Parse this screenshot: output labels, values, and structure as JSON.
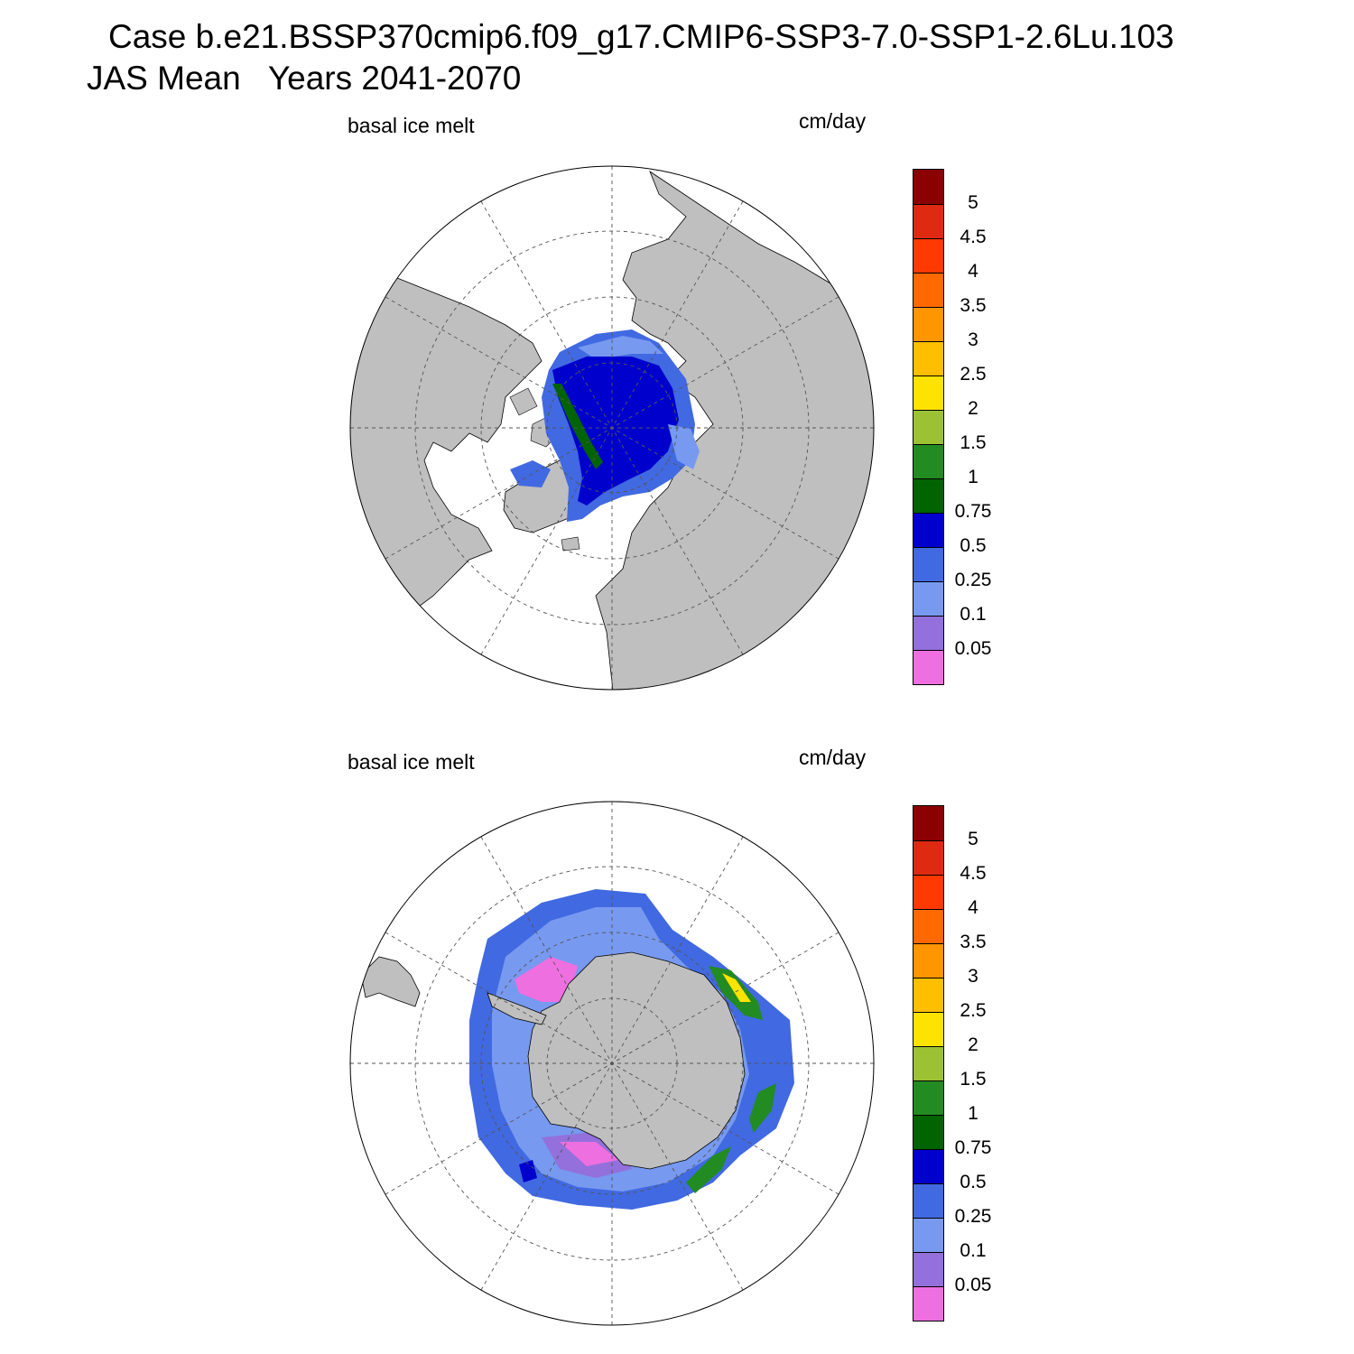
{
  "header": {
    "case_line": "Case b.e21.BSSP370cmip6.f09_g17.CMIP6-SSP3-7.0-SSP1-2.6Lu.103",
    "period_line": "JAS Mean   Years 2041-2070"
  },
  "panels": [
    {
      "variable": "basal ice melt",
      "units": "cm/day",
      "hemisphere": "north"
    },
    {
      "variable": "basal ice melt",
      "units": "cm/day",
      "hemisphere": "south"
    }
  ],
  "colorbar": {
    "colors": [
      "#8b0000",
      "#dd2a10",
      "#ff3a00",
      "#ff6900",
      "#ff9500",
      "#ffbe00",
      "#ffe300",
      "#9cc233",
      "#228b22",
      "#006400",
      "#0000cd",
      "#4169e1",
      "#7799f0",
      "#9370db",
      "#ee6fe0"
    ],
    "labels": [
      "5",
      "4.5",
      "4",
      "3.5",
      "3",
      "2.5",
      "2",
      "1.5",
      "1",
      "0.75",
      "0.5",
      "0.25",
      "0.1",
      "0.05"
    ]
  },
  "colors": {
    "land": "#bfbfbf",
    "grid": "#555555"
  }
}
